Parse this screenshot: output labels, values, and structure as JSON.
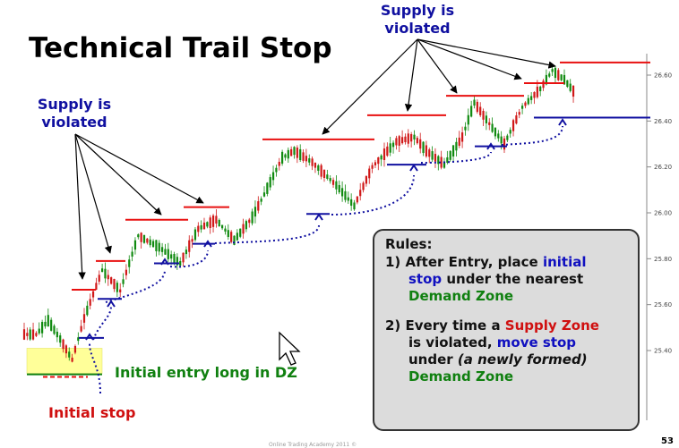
{
  "title": "Technical Trail Stop",
  "annotations": {
    "supply_left": [
      "Supply is",
      "violated"
    ],
    "supply_top": [
      "Supply is",
      "violated"
    ],
    "entry": "Initial entry long in DZ",
    "initial_stop": "Initial stop"
  },
  "rules": {
    "header": "Rules:",
    "r1_a": "1) After Entry, place ",
    "r1_initial": "initial",
    "r1_stop": "stop",
    "r1_b": " under the nearest",
    "r1_dz": "Demand Zone",
    "r2_a": "2) Every time a ",
    "r2_supply": "Supply Zone",
    "r2_b": "is violated, ",
    "r2_move": "move stop",
    "r2_c": "under ",
    "r2_newly": "(a newly formed)",
    "r2_dz": "Demand Zone"
  },
  "page_number": "53",
  "footer": "Online Trading Academy 2011 ©",
  "colors": {
    "supply_line": "#e81010",
    "stop_line": "#1010a0",
    "candle_up": "#108a10",
    "candle_down": "#d01818",
    "demand_zone": "#ffff99"
  },
  "chart_data": {
    "type": "candlestick",
    "y_ticks": [
      "25.40",
      "25.60",
      "25.80",
      "26.00",
      "26.20",
      "26.40",
      "26.60"
    ],
    "y_tick_values": [
      25.4,
      25.6,
      25.8,
      26.0,
      26.2,
      26.4,
      26.6
    ],
    "ylim": [
      25.08,
      26.72
    ],
    "price_path": [
      [
        0,
        25.47
      ],
      [
        4,
        25.47
      ],
      [
        8,
        25.53
      ],
      [
        12,
        25.45
      ],
      [
        16,
        25.36
      ],
      [
        20,
        25.54
      ],
      [
        26,
        25.75
      ],
      [
        32,
        25.66
      ],
      [
        38,
        25.9
      ],
      [
        45,
        25.85
      ],
      [
        52,
        25.78
      ],
      [
        58,
        25.93
      ],
      [
        64,
        25.97
      ],
      [
        70,
        25.88
      ],
      [
        76,
        25.98
      ],
      [
        80,
        26.08
      ],
      [
        86,
        26.24
      ],
      [
        90,
        26.27
      ],
      [
        96,
        26.22
      ],
      [
        104,
        26.12
      ],
      [
        110,
        26.03
      ],
      [
        116,
        26.2
      ],
      [
        124,
        26.31
      ],
      [
        130,
        26.33
      ],
      [
        134,
        26.27
      ],
      [
        140,
        26.21
      ],
      [
        146,
        26.33
      ],
      [
        150,
        26.48
      ],
      [
        156,
        26.37
      ],
      [
        160,
        26.3
      ],
      [
        166,
        26.46
      ],
      [
        172,
        26.54
      ],
      [
        176,
        26.62
      ],
      [
        180,
        26.58
      ],
      [
        183,
        26.53
      ]
    ],
    "supply_levels": [
      25.665,
      25.79,
      25.97,
      26.025,
      26.32,
      26.425,
      26.51,
      26.565,
      26.655
    ],
    "stop_levels": [
      25.455,
      25.625,
      25.78,
      25.865,
      25.995,
      26.21,
      26.29,
      26.415
    ],
    "initial_stop_level": 25.285,
    "demand_zone": [
      25.3,
      25.41
    ]
  }
}
